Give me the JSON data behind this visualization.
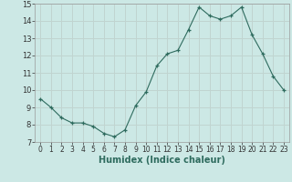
{
  "x": [
    0,
    1,
    2,
    3,
    4,
    5,
    6,
    7,
    8,
    9,
    10,
    11,
    12,
    13,
    14,
    15,
    16,
    17,
    18,
    19,
    20,
    21,
    22,
    23
  ],
  "y": [
    9.5,
    9.0,
    8.4,
    8.1,
    8.1,
    7.9,
    7.5,
    7.3,
    7.7,
    9.1,
    9.9,
    11.4,
    12.1,
    12.3,
    13.5,
    14.8,
    14.3,
    14.1,
    14.3,
    14.8,
    13.2,
    12.1,
    10.8,
    10.0
  ],
  "xlabel": "Humidex (Indice chaleur)",
  "ylim": [
    7,
    15
  ],
  "xlim_left": -0.5,
  "xlim_right": 23.5,
  "yticks": [
    7,
    8,
    9,
    10,
    11,
    12,
    13,
    14,
    15
  ],
  "xticks": [
    0,
    1,
    2,
    3,
    4,
    5,
    6,
    7,
    8,
    9,
    10,
    11,
    12,
    13,
    14,
    15,
    16,
    17,
    18,
    19,
    20,
    21,
    22,
    23
  ],
  "line_color": "#2e6b5e",
  "bg_color": "#cce8e5",
  "grid_color": "#c0d4d0",
  "marker": "+",
  "tick_fontsize": 5.5,
  "xlabel_fontsize": 7.0,
  "ytick_fontsize": 6.0
}
